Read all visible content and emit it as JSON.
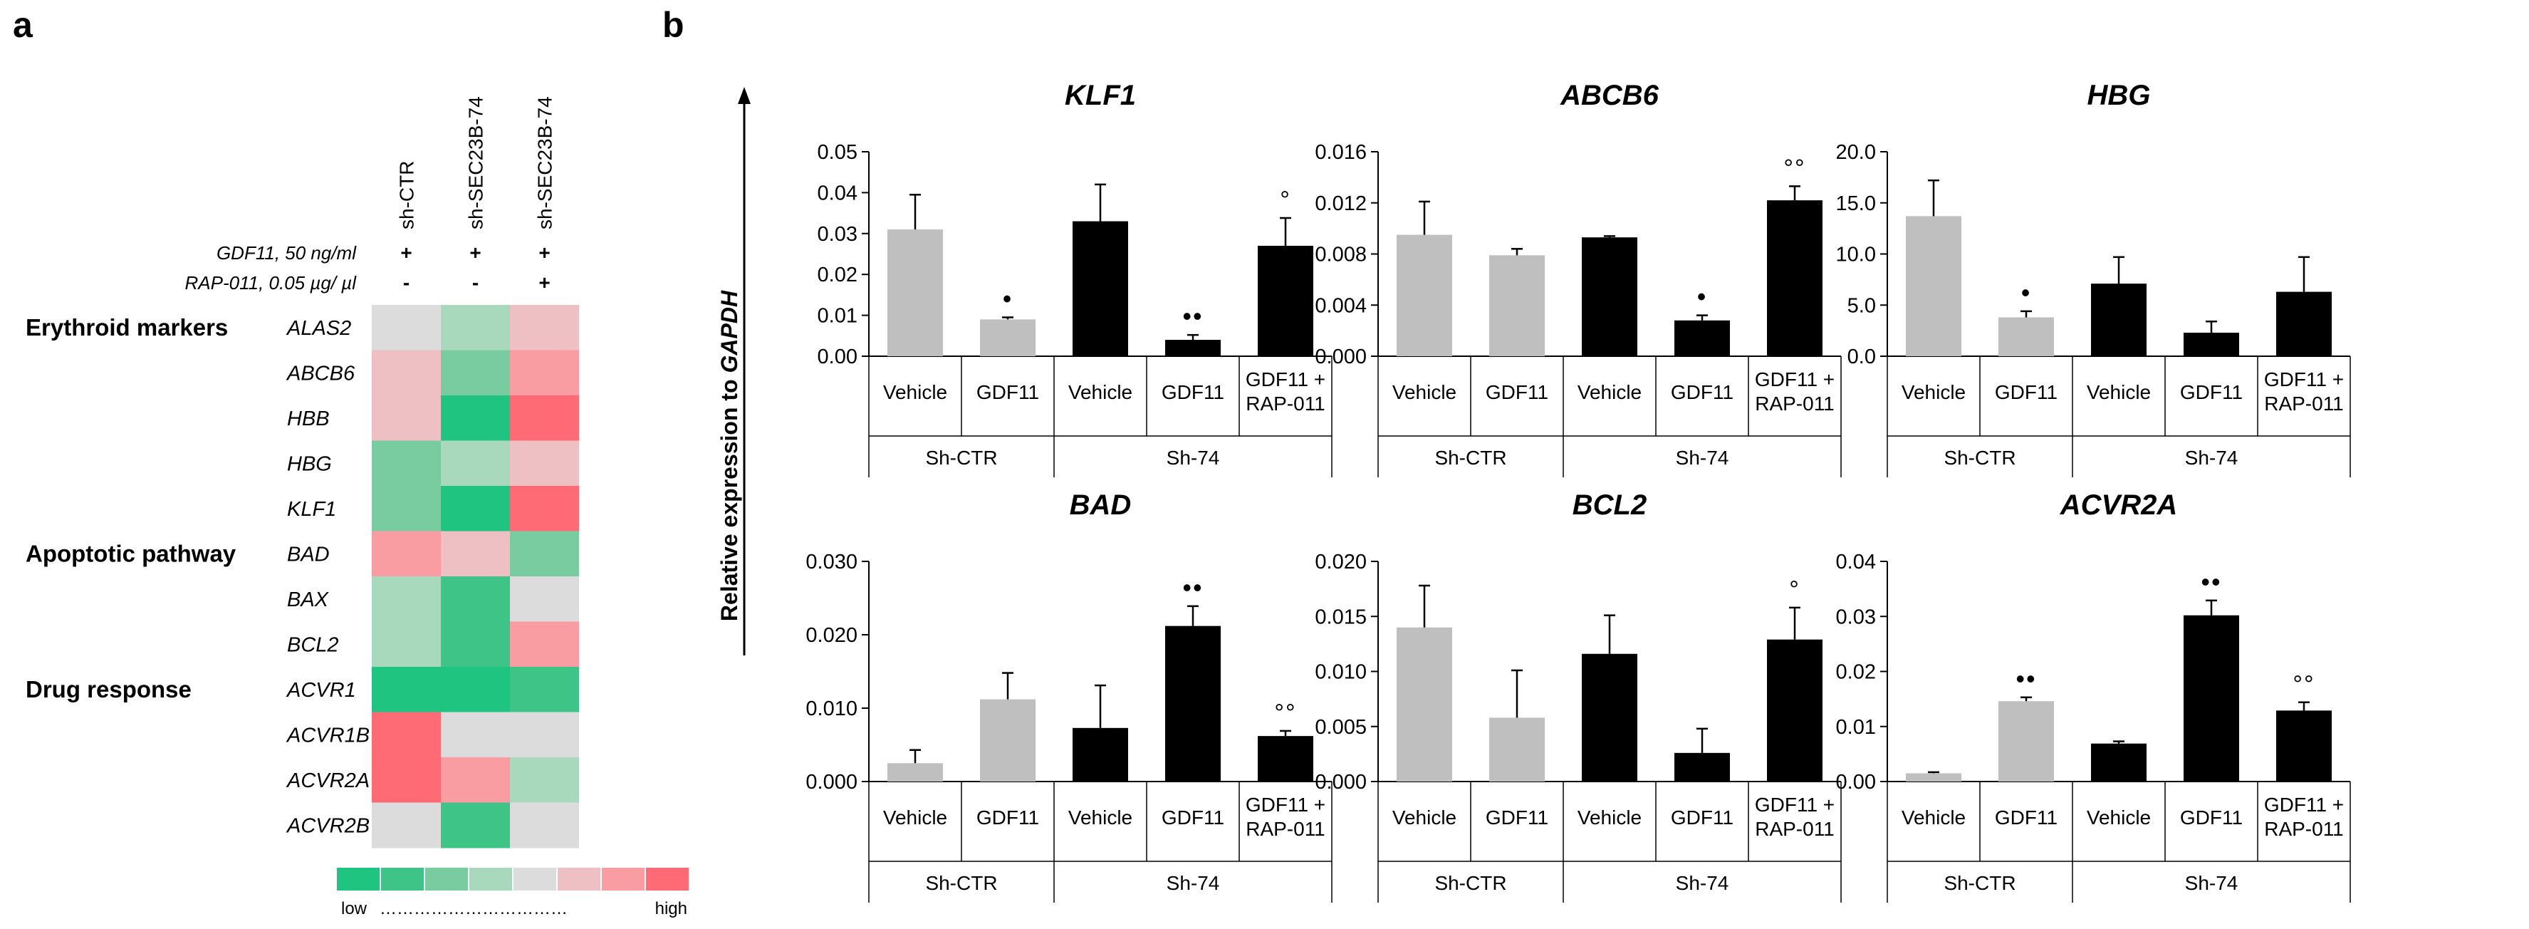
{
  "panel_labels": {
    "a": "a",
    "b": "b"
  },
  "heatmap": {
    "columns": [
      "sh-CTR",
      "sh-SEC23B-74",
      "sh-SEC23B-74"
    ],
    "treatments": [
      {
        "label": "GDF11, 50 ng/ml",
        "values": [
          "+",
          "+",
          "+"
        ]
      },
      {
        "label": "RAP-011, 0.05 µg/ µl",
        "values": [
          "-",
          "-",
          "+"
        ]
      }
    ],
    "groups": [
      {
        "label": "Erythroid markers",
        "first_row": 0
      },
      {
        "label": "Apoptotic pathway",
        "first_row": 5
      },
      {
        "label": "Drug response",
        "first_row": 8
      }
    ],
    "rows": [
      {
        "gene": "ALAS2",
        "levels": [
          4,
          3,
          5
        ]
      },
      {
        "gene": "ABCB6",
        "levels": [
          5,
          2,
          6
        ]
      },
      {
        "gene": "HBB",
        "levels": [
          5,
          0,
          7
        ]
      },
      {
        "gene": "HBG",
        "levels": [
          2,
          3,
          5
        ]
      },
      {
        "gene": "KLF1",
        "levels": [
          2,
          0,
          7
        ]
      },
      {
        "gene": "BAD",
        "levels": [
          6,
          5,
          2
        ]
      },
      {
        "gene": "BAX",
        "levels": [
          3,
          1,
          4
        ]
      },
      {
        "gene": "BCL2",
        "levels": [
          3,
          1,
          6
        ]
      },
      {
        "gene": "ACVR1",
        "levels": [
          0,
          0,
          1
        ]
      },
      {
        "gene": "ACVR1B",
        "levels": [
          7,
          4,
          4
        ]
      },
      {
        "gene": "ACVR2A",
        "levels": [
          7,
          6,
          3
        ]
      },
      {
        "gene": "ACVR2B",
        "levels": [
          4,
          1,
          4
        ]
      }
    ],
    "scale_colors": [
      "#1ec47f",
      "#3fc488",
      "#78cc9f",
      "#a9d9bd",
      "#dcdcdc",
      "#eec0c4",
      "#f99da3",
      "#ff6b74"
    ],
    "scale_low_label": "low",
    "scale_dots": "……………………………",
    "scale_high_label": "high"
  },
  "y_axis_title_prefix": "Relative expression to ",
  "y_axis_title_gene": "GAPDH",
  "colors": {
    "grey_bar": "#bfbfbf",
    "black_bar": "#000000"
  },
  "chart_data": [
    {
      "type": "bar",
      "title": "KLF1",
      "ylim": [
        0,
        0.05
      ],
      "yticks": [
        "0.00",
        "0.01",
        "0.02",
        "0.03",
        "0.04",
        "0.05"
      ],
      "categories": [
        "Vehicle",
        "GDF11",
        "Vehicle",
        "GDF11",
        "GDF11 +\nRAP-011"
      ],
      "values": [
        0.031,
        0.009,
        0.033,
        0.004,
        0.027
      ],
      "errors": [
        0.0085,
        0.0005,
        0.009,
        0.0012,
        0.0068
      ],
      "bar_colors": [
        "grey",
        "grey",
        "black",
        "black",
        "black"
      ],
      "marks": [
        "",
        "•",
        "",
        "••",
        "°"
      ],
      "groups": [
        {
          "label": "Sh-CTR",
          "span": 2
        },
        {
          "label": "Sh-74",
          "span": 3
        }
      ]
    },
    {
      "type": "bar",
      "title": "ABCB6",
      "ylim": [
        0,
        0.016
      ],
      "yticks": [
        "0.000",
        "0.004",
        "0.008",
        "0.012",
        "0.016"
      ],
      "categories": [
        "Vehicle",
        "GDF11",
        "Vehicle",
        "GDF11",
        "GDF11 +\nRAP-011"
      ],
      "values": [
        0.0095,
        0.0079,
        0.0093,
        0.0028,
        0.0122
      ],
      "errors": [
        0.0026,
        0.0005,
        0.0001,
        0.0004,
        0.0011
      ],
      "bar_colors": [
        "grey",
        "grey",
        "black",
        "black",
        "black"
      ],
      "marks": [
        "",
        "",
        "",
        "•",
        "°°"
      ],
      "groups": [
        {
          "label": "Sh-CTR",
          "span": 2
        },
        {
          "label": "Sh-74",
          "span": 3
        }
      ]
    },
    {
      "type": "bar",
      "title": "HBG",
      "ylim": [
        0,
        20
      ],
      "yticks": [
        "0.0",
        "5.0",
        "10.0",
        "15.0",
        "20.0"
      ],
      "categories": [
        "Vehicle",
        "GDF11",
        "Vehicle",
        "GDF11",
        "GDF11 +\nRAP-011"
      ],
      "values": [
        13.7,
        3.8,
        7.1,
        2.3,
        6.3
      ],
      "errors": [
        3.5,
        0.6,
        2.6,
        1.1,
        3.4
      ],
      "bar_colors": [
        "grey",
        "grey",
        "black",
        "black",
        "black"
      ],
      "marks": [
        "",
        "•",
        "",
        "",
        ""
      ],
      "groups": [
        {
          "label": "Sh-CTR",
          "span": 2
        },
        {
          "label": "Sh-74",
          "span": 3
        }
      ]
    },
    {
      "type": "bar",
      "title": "BAD",
      "ylim": [
        0,
        0.03
      ],
      "yticks": [
        "0.000",
        "0.010",
        "0.020",
        "0.030"
      ],
      "categories": [
        "Vehicle",
        "GDF11",
        "Vehicle",
        "GDF11",
        "GDF11 +\nRAP-011"
      ],
      "values": [
        0.0025,
        0.0112,
        0.0073,
        0.0212,
        0.0062
      ],
      "errors": [
        0.0018,
        0.0036,
        0.0058,
        0.0027,
        0.0007
      ],
      "bar_colors": [
        "grey",
        "grey",
        "black",
        "black",
        "black"
      ],
      "marks": [
        "",
        "",
        "",
        "••",
        "°°"
      ],
      "groups": [
        {
          "label": "Sh-CTR",
          "span": 2
        },
        {
          "label": "Sh-74",
          "span": 3
        }
      ]
    },
    {
      "type": "bar",
      "title": "BCL2",
      "ylim": [
        0,
        0.02
      ],
      "yticks": [
        "0.000",
        "0.005",
        "0.010",
        "0.015",
        "0.020"
      ],
      "categories": [
        "Vehicle",
        "GDF11",
        "Vehicle",
        "GDF11",
        "GDF11 +\nRAP-011"
      ],
      "values": [
        0.014,
        0.0058,
        0.0116,
        0.0026,
        0.0129
      ],
      "errors": [
        0.0038,
        0.0043,
        0.0035,
        0.0022,
        0.0029
      ],
      "bar_colors": [
        "grey",
        "grey",
        "black",
        "black",
        "black"
      ],
      "marks": [
        "",
        "",
        "",
        "",
        "°"
      ],
      "groups": [
        {
          "label": "Sh-CTR",
          "span": 2
        },
        {
          "label": "Sh-74",
          "span": 3
        }
      ]
    },
    {
      "type": "bar",
      "title": "ACVR2A",
      "ylim": [
        0,
        0.04
      ],
      "yticks": [
        "0.00",
        "0.01",
        "0.02",
        "0.03",
        "0.04"
      ],
      "categories": [
        "Vehicle",
        "GDF11",
        "Vehicle",
        "GDF11",
        "GDF11 +\nRAP-011"
      ],
      "values": [
        0.0015,
        0.0146,
        0.0069,
        0.0302,
        0.0129
      ],
      "errors": [
        0.0002,
        0.0007,
        0.0004,
        0.0027,
        0.0015
      ],
      "bar_colors": [
        "grey",
        "grey",
        "black",
        "black",
        "black"
      ],
      "marks": [
        "",
        "••",
        "",
        "••",
        "°°"
      ],
      "groups": [
        {
          "label": "Sh-CTR",
          "span": 2
        },
        {
          "label": "Sh-74",
          "span": 3
        }
      ]
    }
  ]
}
